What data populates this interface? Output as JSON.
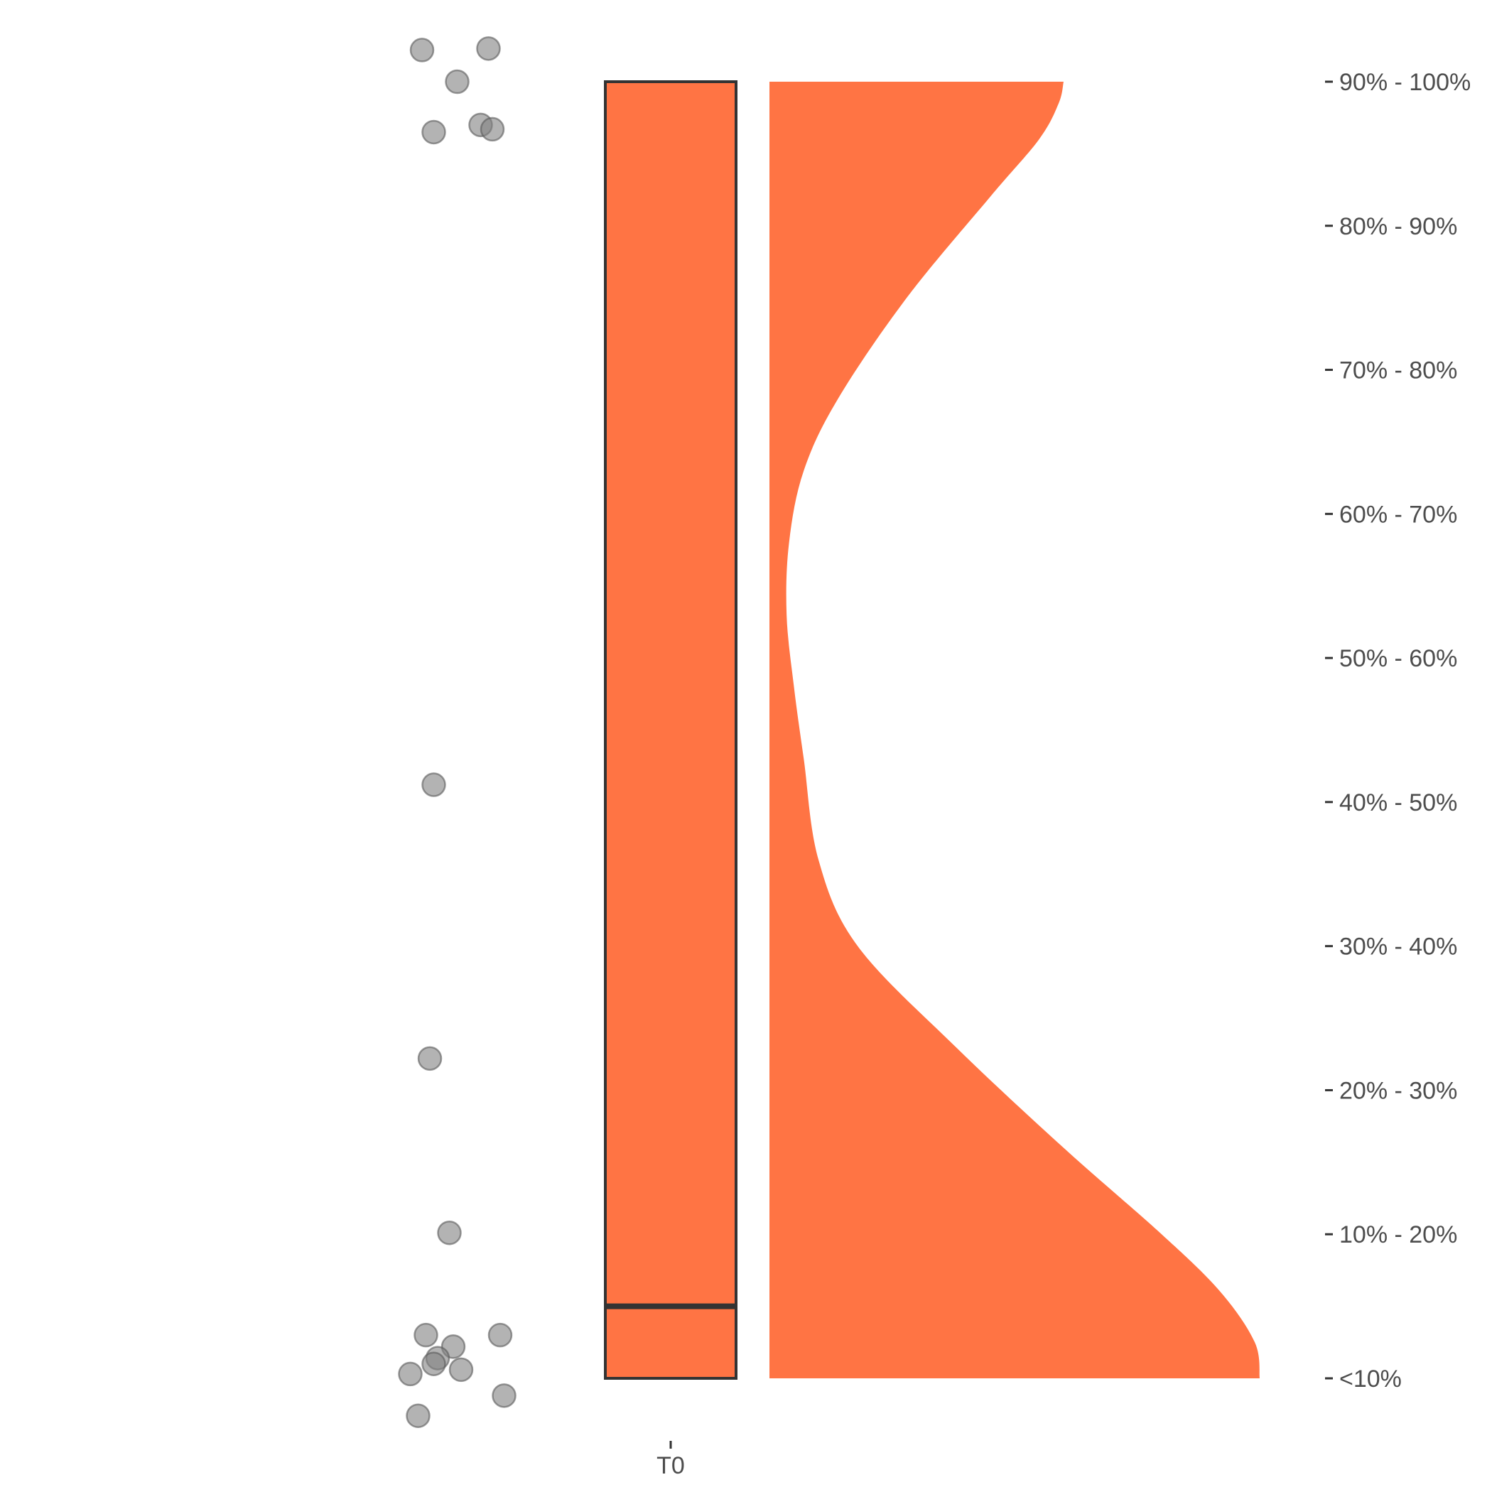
{
  "chart_data": {
    "type": "raincloud",
    "title": "",
    "xlabel": "",
    "ylabel": "",
    "categories": [
      "T0"
    ],
    "y_tick_labels": [
      "<10%",
      "10% - 20%",
      "20% - 30%",
      "30% - 40%",
      "40% - 50%",
      "50% - 60%",
      "60% - 70%",
      "70% - 80%",
      "80% - 90%",
      "90% - 100%"
    ],
    "y_range": [
      1,
      10
    ],
    "y_axis_position": "right",
    "grid": false,
    "legend": "none",
    "box": {
      "category": "T0",
      "lower_hinge": 1,
      "median": 1.5,
      "upper_hinge": 10,
      "whisker_low": 1,
      "whisker_high": 10
    },
    "density": {
      "y": [
        1.0,
        1.25,
        1.6,
        2.0,
        2.6,
        3.3,
        4.0,
        4.6,
        5.3,
        5.8,
        6.3,
        6.8,
        7.3,
        7.8,
        8.5,
        9.2,
        9.6,
        9.85,
        10.0
      ],
      "density": [
        1.0,
        0.99,
        0.92,
        0.8,
        0.6,
        0.38,
        0.18,
        0.1,
        0.07,
        0.05,
        0.035,
        0.04,
        0.07,
        0.14,
        0.28,
        0.45,
        0.55,
        0.59,
        0.6
      ]
    },
    "points": [
      {
        "x_jitter": -0.12,
        "y": 10.22
      },
      {
        "x_jitter": 0.05,
        "y": 10.23
      },
      {
        "x_jitter": -0.03,
        "y": 10.0
      },
      {
        "x_jitter": 0.03,
        "y": 9.7
      },
      {
        "x_jitter": -0.09,
        "y": 9.65
      },
      {
        "x_jitter": 0.06,
        "y": 9.67
      },
      {
        "x_jitter": -0.09,
        "y": 5.12
      },
      {
        "x_jitter": -0.1,
        "y": 3.22
      },
      {
        "x_jitter": -0.05,
        "y": 2.01
      },
      {
        "x_jitter": -0.11,
        "y": 1.3
      },
      {
        "x_jitter": 0.08,
        "y": 1.3
      },
      {
        "x_jitter": -0.04,
        "y": 1.22
      },
      {
        "x_jitter": -0.08,
        "y": 1.14
      },
      {
        "x_jitter": -0.09,
        "y": 1.1
      },
      {
        "x_jitter": -0.15,
        "y": 1.03
      },
      {
        "x_jitter": -0.02,
        "y": 1.06
      },
      {
        "x_jitter": 0.09,
        "y": 0.88
      },
      {
        "x_jitter": -0.13,
        "y": 0.74
      }
    ],
    "colors": {
      "fill": "#ff7444",
      "outline": "#333333",
      "point": "#808080",
      "text": "#4d4d4d"
    }
  }
}
